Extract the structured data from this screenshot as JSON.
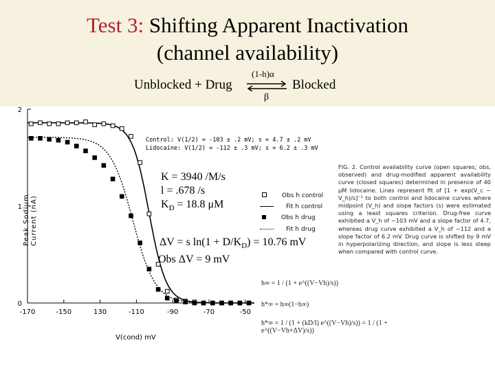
{
  "slide": {
    "title_line1_prefix": "Test 3:",
    "title_line1_rest": " Shifting Apparent Inactivation",
    "title_line2": "(channel availability)",
    "accent_color": "#b0242a"
  },
  "scheme": {
    "left": "Unblocked + Drug",
    "forward_rate": "(1-h)α",
    "reverse_rate": "β",
    "right": "Blocked"
  },
  "figure": {
    "y_axis_label": "Peak Sodium Current (nA)",
    "x_axis_label": "V(cond) mV",
    "fit_params": {
      "control_label": "Control:",
      "control_values": "V(1/2) = -103 ± .2 mV;  s = 4.7 ± .2 mV",
      "drug_label": "Lidocaine:",
      "drug_values": "V(1/2) = -112 ± .3 mV;  s = 6.2 ± .3 mV"
    },
    "legend": [
      "Obs h control",
      "Fit h control",
      "Obs h drug",
      "Fit h drug"
    ],
    "overlay": {
      "k": "K = 3940 /M/s",
      "l": "l  = .678 /s",
      "kd_main": "K",
      "kd_sub": "D",
      "kd_rest": " = 18.8 μM",
      "dv_main": "ΔV = s ln(1 + D/K",
      "dv_sub": "D",
      "dv_rest": ") = 10.76 mV",
      "obs": "Obs ΔV = 9 mV"
    },
    "caption": "FIG. 2. Control availability curve (open squares; obs, observed) and drug-modified apparent availability curve (closed squares) determined in presence of 40 μM lidocaine. Lines represent fit of [1 + exp(V_c − V_h)/s]⁻¹ to both control and lidocaine curves where midpoint (V_h) and slope factors (s) were estimated using a least squares criterion. Drug-free curve exhibited a V_h of −103 mV and a slope factor of 4.7, whereas drug curve exhibited a V_h of −112 and a slope factor of 6.2 mV. Drug curve is shifted by 9 mV in hyperpolarizing direction, and slope is less steep when compared with control curve.",
    "equations": {
      "eq1": "h∞ = 1 / (1 + e^((V−Vh)/s))",
      "eq2": "h*∞ = h∞(1−b∞)",
      "eq3": "h*∞ = 1 / (1 + (kD/l) e^((V−Vh)/s)) = 1 / (1 + e^((V−Vh+ΔV)/s))"
    }
  },
  "chart_data": {
    "type": "scatter",
    "xlabel": "V(cond) mV",
    "ylabel": "Peak Sodium Current (nA)",
    "x_ticks": [
      "-170",
      "-150",
      "130",
      "-110",
      "-90",
      "-70",
      "-50"
    ],
    "y_ticks": [
      "0",
      "1",
      "2"
    ],
    "xlim": [
      -170,
      -45
    ],
    "ylim": [
      0,
      2
    ],
    "series": [
      {
        "name": "Obs h control",
        "marker": "open-square",
        "x": [
          -168,
          -163,
          -158,
          -153,
          -148,
          -143,
          -138,
          -133,
          -128,
          -123,
          -118,
          -113,
          -108,
          -103,
          -98,
          -93,
          -88,
          -83,
          -78,
          -73,
          -68,
          -63,
          -58,
          -53,
          -48
        ],
        "y": [
          1.85,
          1.86,
          1.85,
          1.85,
          1.86,
          1.86,
          1.87,
          1.84,
          1.85,
          1.83,
          1.8,
          1.72,
          1.45,
          0.92,
          0.4,
          0.12,
          0.03,
          0.02,
          0.01,
          0.0,
          0.0,
          0.0,
          0.0,
          0.0,
          0.0
        ]
      },
      {
        "name": "Obs h drug",
        "marker": "filled-square",
        "x": [
          -168,
          -163,
          -158,
          -153,
          -148,
          -143,
          -138,
          -133,
          -128,
          -123,
          -118,
          -113,
          -108,
          -103,
          -98,
          -93,
          -88,
          -83,
          -78,
          -73,
          -68,
          -63,
          -58,
          -53,
          -48
        ],
        "y": [
          1.7,
          1.7,
          1.69,
          1.68,
          1.66,
          1.62,
          1.57,
          1.5,
          1.42,
          1.28,
          1.1,
          0.9,
          0.62,
          0.35,
          0.14,
          0.05,
          0.02,
          0.01,
          0.0,
          0.0,
          0.0,
          0.0,
          0.0,
          0.0,
          0.0
        ]
      }
    ]
  }
}
